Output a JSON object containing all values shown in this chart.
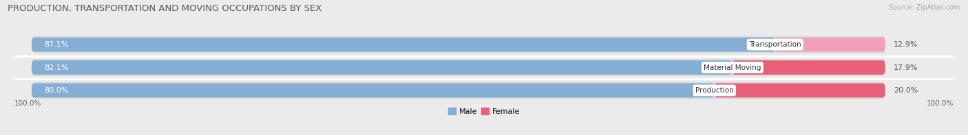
{
  "title": "PRODUCTION, TRANSPORTATION AND MOVING OCCUPATIONS BY SEX",
  "source": "Source: ZipAtlas.com",
  "categories": [
    "Transportation",
    "Material Moving",
    "Production"
  ],
  "male_pcts": [
    87.1,
    82.1,
    80.0
  ],
  "female_pcts": [
    12.9,
    17.9,
    20.0
  ],
  "male_color": "#85aed4",
  "female_colors": [
    "#f0a0bc",
    "#e8607a",
    "#e8607a"
  ],
  "label_color_male": "#ffffff",
  "background_color": "#ebebeb",
  "bar_bg_color": "#d8d8d8",
  "title_fontsize": 9.5,
  "source_fontsize": 7,
  "bar_fontsize": 8,
  "legend_fontsize": 8,
  "axis_label_fontsize": 7.5,
  "bar_height": 0.62,
  "x_left_label": "100.0%",
  "x_right_label": "100.0%",
  "legend_male_color": "#85aed4",
  "legend_female_color": "#e8607a"
}
